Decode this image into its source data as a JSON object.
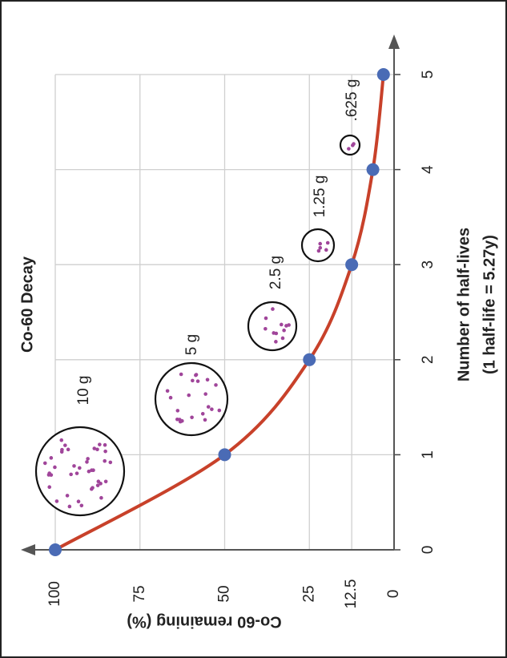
{
  "chart_data": {
    "type": "line",
    "title": "Co-60 Decay",
    "x_label": [
      "Number of half-lives",
      "(1 half-life = 5.27y)"
    ],
    "y_label": "Co-60 remaining (%)",
    "x": [
      0,
      1,
      2,
      3,
      4,
      5
    ],
    "series": [
      {
        "color": "#c8412a",
        "marker_color": "#4a6bb5",
        "values": [
          100,
          50,
          25,
          12.5,
          6.25,
          3.125
        ]
      }
    ],
    "xlim": [
      0,
      5
    ],
    "xticks": [
      0,
      1,
      2,
      3,
      4,
      5
    ],
    "ylim": [
      0,
      100
    ],
    "yticks": [
      100,
      75,
      50,
      25,
      12.5,
      0
    ],
    "grid": true,
    "annotations": [
      "10 g",
      "5 g",
      "2.5 g",
      "1.25 g",
      ".625 g"
    ]
  }
}
